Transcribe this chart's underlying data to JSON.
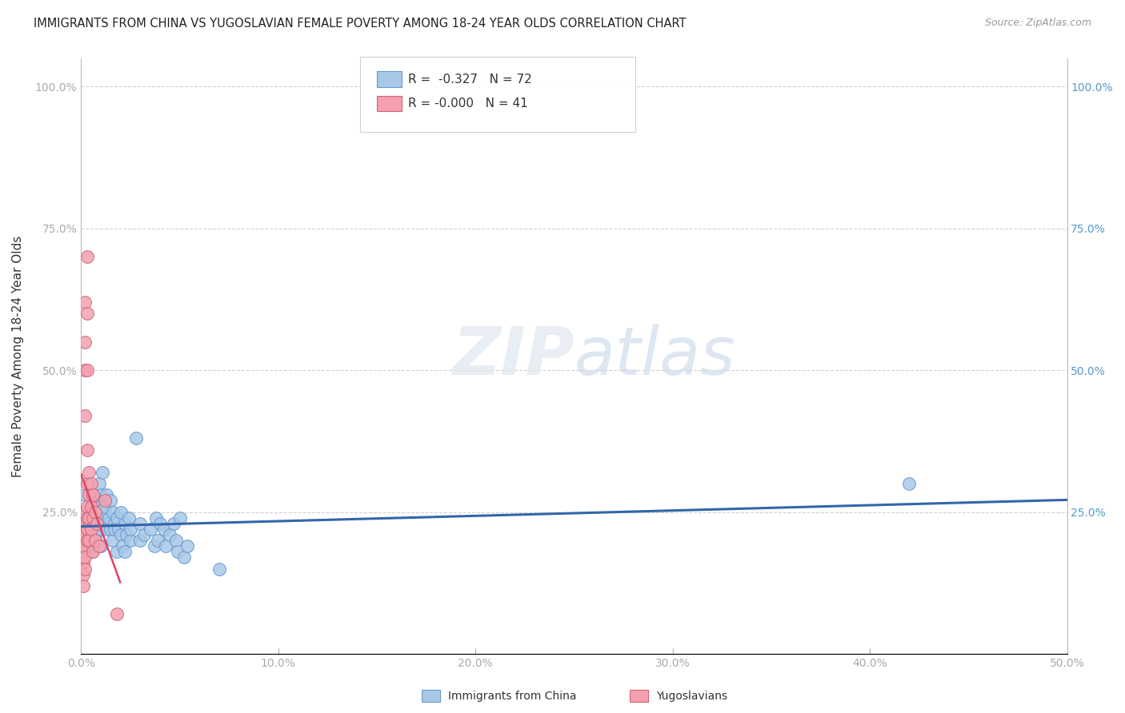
{
  "title": "IMMIGRANTS FROM CHINA VS YUGOSLAVIAN FEMALE POVERTY AMONG 18-24 YEAR OLDS CORRELATION CHART",
  "source": "Source: ZipAtlas.com",
  "ylabel": "Female Poverty Among 18-24 Year Olds",
  "x_range": [
    0.0,
    0.5
  ],
  "y_range": [
    0.0,
    1.05
  ],
  "watermark_zip": "ZIP",
  "watermark_atlas": "atlas",
  "china_points": [
    [
      0.001,
      0.22
    ],
    [
      0.002,
      0.28
    ],
    [
      0.002,
      0.2
    ],
    [
      0.003,
      0.24
    ],
    [
      0.003,
      0.19
    ],
    [
      0.003,
      0.22
    ],
    [
      0.004,
      0.25
    ],
    [
      0.004,
      0.21
    ],
    [
      0.004,
      0.23
    ],
    [
      0.005,
      0.26
    ],
    [
      0.005,
      0.2
    ],
    [
      0.005,
      0.18
    ],
    [
      0.006,
      0.22
    ],
    [
      0.006,
      0.19
    ],
    [
      0.006,
      0.23
    ],
    [
      0.007,
      0.21
    ],
    [
      0.007,
      0.25
    ],
    [
      0.007,
      0.2
    ],
    [
      0.008,
      0.27
    ],
    [
      0.008,
      0.24
    ],
    [
      0.008,
      0.22
    ],
    [
      0.009,
      0.3
    ],
    [
      0.009,
      0.26
    ],
    [
      0.009,
      0.22
    ],
    [
      0.01,
      0.28
    ],
    [
      0.01,
      0.24
    ],
    [
      0.01,
      0.19
    ],
    [
      0.011,
      0.25
    ],
    [
      0.011,
      0.32
    ],
    [
      0.012,
      0.23
    ],
    [
      0.012,
      0.26
    ],
    [
      0.013,
      0.28
    ],
    [
      0.013,
      0.22
    ],
    [
      0.014,
      0.24
    ],
    [
      0.015,
      0.22
    ],
    [
      0.015,
      0.27
    ],
    [
      0.016,
      0.25
    ],
    [
      0.016,
      0.2
    ],
    [
      0.017,
      0.23
    ],
    [
      0.017,
      0.22
    ],
    [
      0.018,
      0.24
    ],
    [
      0.018,
      0.18
    ],
    [
      0.019,
      0.22
    ],
    [
      0.02,
      0.25
    ],
    [
      0.02,
      0.21
    ],
    [
      0.021,
      0.19
    ],
    [
      0.022,
      0.23
    ],
    [
      0.022,
      0.18
    ],
    [
      0.023,
      0.21
    ],
    [
      0.024,
      0.24
    ],
    [
      0.025,
      0.2
    ],
    [
      0.025,
      0.22
    ],
    [
      0.028,
      0.38
    ],
    [
      0.03,
      0.23
    ],
    [
      0.03,
      0.2
    ],
    [
      0.032,
      0.21
    ],
    [
      0.035,
      0.22
    ],
    [
      0.037,
      0.19
    ],
    [
      0.038,
      0.24
    ],
    [
      0.039,
      0.2
    ],
    [
      0.04,
      0.23
    ],
    [
      0.042,
      0.22
    ],
    [
      0.043,
      0.19
    ],
    [
      0.045,
      0.21
    ],
    [
      0.047,
      0.23
    ],
    [
      0.048,
      0.2
    ],
    [
      0.049,
      0.18
    ],
    [
      0.05,
      0.24
    ],
    [
      0.052,
      0.17
    ],
    [
      0.054,
      0.19
    ],
    [
      0.07,
      0.15
    ],
    [
      0.42,
      0.3
    ]
  ],
  "yugo_points": [
    [
      0.001,
      0.22
    ],
    [
      0.001,
      0.2
    ],
    [
      0.001,
      0.18
    ],
    [
      0.001,
      0.16
    ],
    [
      0.001,
      0.14
    ],
    [
      0.001,
      0.12
    ],
    [
      0.002,
      0.5
    ],
    [
      0.002,
      0.62
    ],
    [
      0.002,
      0.55
    ],
    [
      0.002,
      0.42
    ],
    [
      0.002,
      0.25
    ],
    [
      0.002,
      0.23
    ],
    [
      0.002,
      0.21
    ],
    [
      0.002,
      0.19
    ],
    [
      0.002,
      0.17
    ],
    [
      0.002,
      0.15
    ],
    [
      0.003,
      0.7
    ],
    [
      0.003,
      0.6
    ],
    [
      0.003,
      0.5
    ],
    [
      0.003,
      0.36
    ],
    [
      0.003,
      0.3
    ],
    [
      0.003,
      0.26
    ],
    [
      0.003,
      0.24
    ],
    [
      0.003,
      0.22
    ],
    [
      0.003,
      0.2
    ],
    [
      0.004,
      0.32
    ],
    [
      0.004,
      0.28
    ],
    [
      0.004,
      0.24
    ],
    [
      0.004,
      0.2
    ],
    [
      0.005,
      0.3
    ],
    [
      0.005,
      0.26
    ],
    [
      0.005,
      0.22
    ],
    [
      0.006,
      0.28
    ],
    [
      0.006,
      0.24
    ],
    [
      0.006,
      0.18
    ],
    [
      0.007,
      0.25
    ],
    [
      0.007,
      0.2
    ],
    [
      0.008,
      0.23
    ],
    [
      0.009,
      0.19
    ],
    [
      0.012,
      0.27
    ],
    [
      0.018,
      0.07
    ]
  ],
  "china_color": "#a8c8e8",
  "china_edge_color": "#6699cc",
  "yugo_color": "#f4a0b0",
  "yugo_edge_color": "#cc6677",
  "trend_china_color": "#3366aa",
  "trend_yugo_color": "#dd4466",
  "background_color": "#ffffff",
  "grid_color": "#cccccc",
  "right_axis_color": "#5599cc",
  "legend_china_label": "R =  -0.327   N = 72",
  "legend_yugo_label": "R = -0.000   N = 41",
  "bottom_legend_china": "Immigrants from China",
  "bottom_legend_yugo": "Yugoslavians"
}
